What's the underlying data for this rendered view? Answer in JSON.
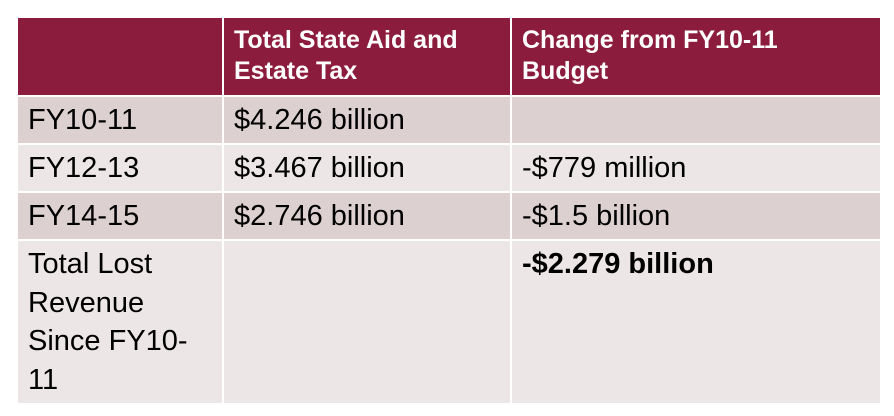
{
  "table": {
    "headers": [
      "",
      "Total State Aid and Estate Tax",
      "Change from FY10-11 Budget"
    ],
    "rows": [
      {
        "period": "FY10-11",
        "total": "$4.246 billion",
        "change": ""
      },
      {
        "period": "FY12-13",
        "total": "$3.467 billion",
        "change": "-$779 million"
      },
      {
        "period": "FY14-15",
        "total": "$2.746 billion",
        "change": "-$1.5 billion"
      }
    ],
    "total_row": {
      "label": "Total Lost Revenue Since FY10-11",
      "total": "",
      "change": "-$2.279 billion"
    }
  },
  "colors": {
    "header_background": "#8c1c3d",
    "header_text": "#ffffff",
    "row_shade_dark": "#dcd0d1",
    "row_shade_light": "#ede6e6"
  }
}
